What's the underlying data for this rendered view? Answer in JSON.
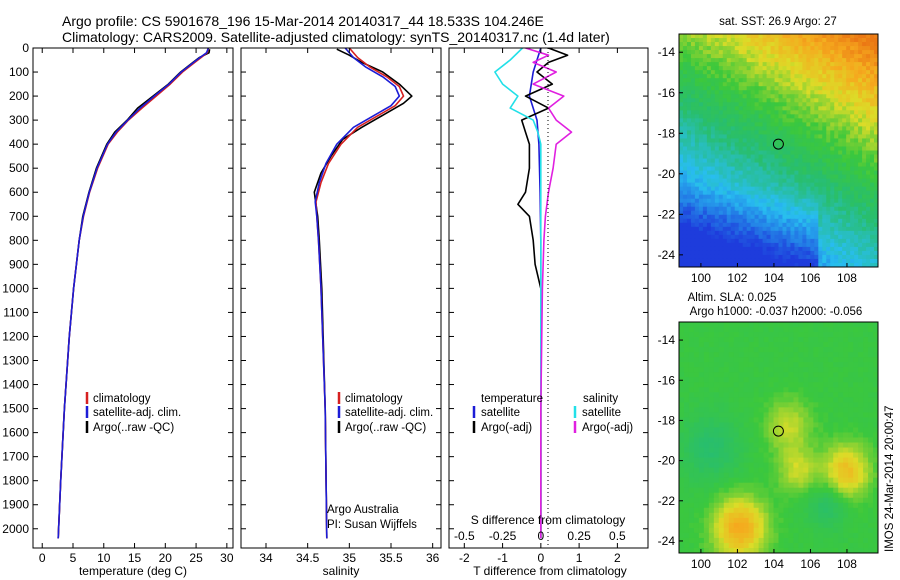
{
  "header": {
    "line1": "Argo profile: CS 5901678_196 15-Mar-2014 20140317_44 18.533S 104.246E",
    "line2": "Climatology: CARS2009. Satellite-adjusted climatology: synTS_20140317.nc (1.4d later)"
  },
  "credit": "IMOS 24-Mar-2014 20:00:47",
  "colors": {
    "climatology": "#d62020",
    "satellite": "#1c1cd6",
    "argo": "#000000",
    "salinity_sat": "#22e0e8",
    "salinity_argo": "#e020e0"
  },
  "chart_data": [
    {
      "type": "line",
      "name": "temperature-profile",
      "xlabel": "temperature (deg C)",
      "ylabel": "depth",
      "xlim": [
        -1.5,
        31
      ],
      "ylim": [
        0,
        2080
      ],
      "xticks": [
        "0",
        "5",
        "10",
        "15",
        "20",
        "25",
        "30"
      ],
      "yticks": [
        "0",
        "100",
        "200",
        "300",
        "400",
        "500",
        "600",
        "700",
        "800",
        "900",
        "1000",
        "1100",
        "1200",
        "1300",
        "1400",
        "1500",
        "1600",
        "1700",
        "1800",
        "1900",
        "2000"
      ],
      "legend": [
        "climatology",
        "satellite-adj. clim.",
        "Argo(..raw -QC)"
      ],
      "series": [
        {
          "name": "Argo(..raw -QC)",
          "depth": [
            5,
            20,
            40,
            60,
            100,
            150,
            200,
            250,
            300,
            350,
            400,
            500,
            600,
            700,
            800,
            1000,
            1200,
            1500,
            1800,
            2040
          ],
          "values": [
            27.2,
            27.1,
            25.5,
            24.5,
            22.5,
            20.5,
            18.0,
            15.5,
            13.8,
            11.8,
            10.5,
            8.8,
            7.6,
            6.6,
            6.0,
            5.1,
            4.4,
            3.6,
            3.0,
            2.6
          ]
        },
        {
          "name": "climatology",
          "depth": [
            0,
            20,
            40,
            60,
            100,
            150,
            200,
            250,
            300,
            350,
            400,
            500,
            600,
            700,
            800,
            1000,
            1200,
            1500,
            1800,
            2040
          ],
          "values": [
            27.0,
            26.8,
            25.8,
            24.8,
            22.8,
            20.8,
            18.5,
            16.2,
            14.0,
            12.2,
            10.7,
            9.0,
            7.7,
            6.7,
            6.0,
            5.1,
            4.4,
            3.6,
            3.0,
            2.6
          ]
        },
        {
          "name": "satellite-adj. clim.",
          "depth": [
            0,
            20,
            40,
            60,
            100,
            150,
            200,
            250,
            300,
            350,
            400,
            500,
            600,
            700,
            800,
            1000,
            1200,
            1500,
            1800,
            2040
          ],
          "values": [
            27.0,
            26.7,
            25.6,
            24.6,
            22.6,
            20.6,
            18.2,
            15.9,
            13.9,
            12.0,
            10.6,
            8.9,
            7.65,
            6.65,
            6.0,
            5.1,
            4.4,
            3.6,
            3.0,
            2.6
          ]
        }
      ]
    },
    {
      "type": "line",
      "name": "salinity-profile",
      "xlabel": "salinity",
      "ylabel": "depth",
      "xlim": [
        33.7,
        36.1
      ],
      "ylim": [
        0,
        2080
      ],
      "xticks": [
        "34",
        "34.5",
        "35",
        "35.5",
        "36"
      ],
      "legend": [
        "climatology",
        "satellite-adj. clim.",
        "Argo(..raw -QC)"
      ],
      "annotation": [
        "Argo Australia",
        "PI: Susan Wijffels"
      ],
      "series": [
        {
          "name": "Argo(..raw -QC)",
          "depth": [
            5,
            30,
            60,
            100,
            150,
            200,
            230,
            280,
            330,
            380,
            450,
            520,
            600,
            650,
            700,
            800,
            1000,
            1500,
            2040
          ],
          "values": [
            34.85,
            35.0,
            35.15,
            35.4,
            35.6,
            35.75,
            35.65,
            35.4,
            35.15,
            34.92,
            34.78,
            34.66,
            34.58,
            34.6,
            34.62,
            34.64,
            34.67,
            34.71,
            34.73
          ]
        },
        {
          "name": "climatology",
          "depth": [
            0,
            40,
            80,
            120,
            160,
            200,
            240,
            280,
            330,
            400,
            480,
            560,
            640,
            700,
            800,
            1000,
            1500,
            2040
          ],
          "values": [
            35.0,
            35.1,
            35.25,
            35.45,
            35.6,
            35.65,
            35.55,
            35.35,
            35.1,
            34.9,
            34.75,
            34.66,
            34.6,
            34.61,
            34.63,
            34.66,
            34.71,
            34.73
          ]
        },
        {
          "name": "satellite-adj. clim.",
          "depth": [
            0,
            40,
            80,
            120,
            160,
            200,
            240,
            280,
            330,
            400,
            480,
            560,
            640,
            700,
            800,
            1000,
            1500,
            2040
          ],
          "values": [
            34.95,
            35.05,
            35.2,
            35.4,
            35.55,
            35.6,
            35.5,
            35.3,
            35.05,
            34.85,
            34.72,
            34.64,
            34.59,
            34.61,
            34.63,
            34.66,
            34.71,
            34.73
          ]
        }
      ]
    },
    {
      "type": "line",
      "name": "difference-profile",
      "xlabel": "T difference from climatology",
      "xlabel_top": "S difference from climatology",
      "xlim": [
        -2.4,
        2.8
      ],
      "ylim": [
        0,
        2080
      ],
      "xticks": [
        "-2",
        "-1",
        "0",
        "1",
        "2"
      ],
      "xticks_s": [
        "-0.5",
        "-0.25",
        "0",
        "0.25",
        "0.5"
      ],
      "legend_titles": [
        "temperature",
        "salinity"
      ],
      "legend": [
        "satellite",
        "Argo(-adj)",
        "satellite",
        "Argo(-adj)"
      ],
      "series": [
        {
          "name": "temperature satellite",
          "depth": [
            0,
            100,
            200,
            300,
            400,
            600,
            800,
            1000,
            1500,
            2040
          ],
          "values": [
            0.0,
            -0.2,
            -0.3,
            -0.1,
            -0.05,
            -0.02,
            0,
            0,
            0,
            0
          ]
        },
        {
          "name": "temperature Argo(-adj)",
          "depth": [
            0,
            30,
            60,
            100,
            150,
            200,
            250,
            300,
            350,
            400,
            500,
            600,
            650,
            700,
            800,
            900,
            1000,
            1200,
            1500,
            2040
          ],
          "values": [
            0.2,
            0.7,
            0.2,
            -0.1,
            0.3,
            -0.4,
            0.2,
            -0.5,
            -0.4,
            -0.3,
            -0.3,
            -0.4,
            -0.6,
            -0.3,
            -0.2,
            -0.15,
            0.0,
            0.0,
            0.0,
            0.0
          ]
        },
        {
          "name": "salinity satellite",
          "depth": [
            0,
            50,
            100,
            150,
            200,
            250,
            300,
            350,
            400,
            500,
            600,
            800,
            1000,
            1500,
            2040
          ],
          "values": [
            -0.12,
            -0.2,
            -0.3,
            -0.25,
            -0.15,
            -0.2,
            -0.05,
            -0.02,
            0.0,
            0.0,
            0.0,
            0.0,
            0.0,
            0.0,
            0.0
          ]
        },
        {
          "name": "salinity Argo(-adj)",
          "depth": [
            0,
            30,
            60,
            100,
            150,
            200,
            250,
            300,
            350,
            400,
            500,
            600,
            700,
            800,
            1000,
            1500,
            2040
          ],
          "values": [
            -0.1,
            0.05,
            -0.05,
            0.1,
            -0.05,
            0.15,
            0.05,
            0.1,
            0.2,
            0.1,
            0.08,
            0.05,
            0.03,
            0.02,
            0.01,
            0.0,
            0.0
          ]
        }
      ]
    },
    {
      "type": "heatmap",
      "name": "sst-map",
      "title": "sat. SST: 26.9  Argo: 27",
      "xlim": [
        98.8,
        109.7
      ],
      "ylim": [
        -24.6,
        -13.1
      ],
      "xticks": [
        "100",
        "102",
        "104",
        "106",
        "108"
      ],
      "yticks": [
        "-14",
        "-16",
        "-18",
        "-20",
        "-22",
        "-24"
      ],
      "marker": {
        "lon": 104.246,
        "lat": -18.533
      }
    },
    {
      "type": "heatmap",
      "name": "sla-map",
      "title_line1": "Altim. SLA: 0.025",
      "title_line2": "Argo h1000: -0.037 h2000: -0.056",
      "xlim": [
        98.8,
        109.7
      ],
      "ylim": [
        -24.6,
        -13.1
      ],
      "xticks": [
        "100",
        "102",
        "104",
        "106",
        "108"
      ],
      "yticks": [
        "-14",
        "-16",
        "-18",
        "-20",
        "-22",
        "-24"
      ],
      "marker": {
        "lon": 104.246,
        "lat": -18.533
      }
    }
  ]
}
